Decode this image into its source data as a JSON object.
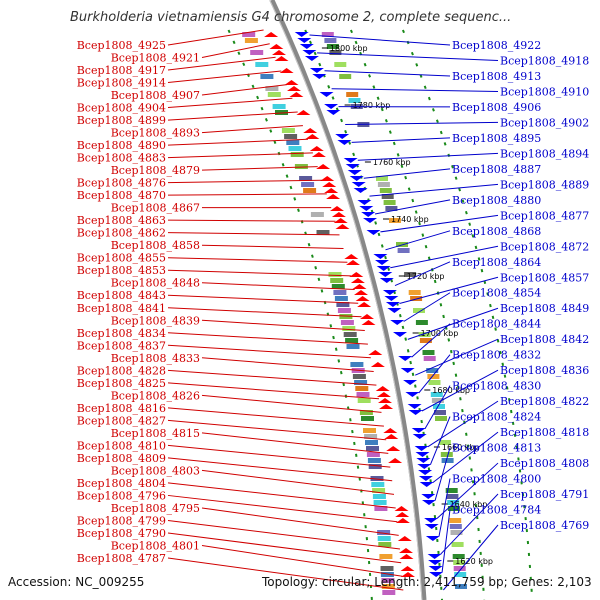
{
  "title": "Burkholderia vietnamiensis G4 chromosome 2, complete sequenc...",
  "footer": {
    "accession": "Accession: NC_009255",
    "summary": "Topology: circular; Length: 2,411,759 bp; Genes: 2,103"
  },
  "colors": {
    "left_labels": "#d00000",
    "right_labels": "#0000cc",
    "forward_genes": "#ff0000",
    "reverse_genes": "#0000ff",
    "backbone": "#888888",
    "track_border": "#1a8a1a"
  },
  "kbp_ticks": [
    "1800 kbp",
    "1780 kbp",
    "1760 kbp",
    "1740 kbp",
    "1720 kbp",
    "1700 kbp",
    "1680 kbp",
    "1660 kbp",
    "1640 kbp",
    "1620 kbp"
  ],
  "left_labels": [
    "Bcep1808_4925",
    "Bcep1808_4921",
    "Bcep1808_4917",
    "Bcep1808_4914",
    "Bcep1808_4907",
    "Bcep1808_4904",
    "Bcep1808_4899",
    "Bcep1808_4893",
    "Bcep1808_4890",
    "Bcep1808_4883",
    "Bcep1808_4879",
    "Bcep1808_4876",
    "Bcep1808_4870",
    "Bcep1808_4867",
    "Bcep1808_4863",
    "Bcep1808_4862",
    "Bcep1808_4858",
    "Bcep1808_4855",
    "Bcep1808_4853",
    "Bcep1808_4848",
    "Bcep1808_4843",
    "Bcep1808_4841",
    "Bcep1808_4839",
    "Bcep1808_4834",
    "Bcep1808_4837",
    "Bcep1808_4833",
    "Bcep1808_4828",
    "Bcep1808_4825",
    "Bcep1808_4826",
    "Bcep1808_4816",
    "Bcep1808_4827",
    "Bcep1808_4815",
    "Bcep1808_4810",
    "Bcep1808_4809",
    "Bcep1808_4803",
    "Bcep1808_4804",
    "Bcep1808_4796",
    "Bcep1808_4795",
    "Bcep1808_4799",
    "Bcep1808_4790",
    "Bcep1808_4801",
    "Bcep1808_4787"
  ],
  "right_labels": [
    "Bcep1808_4922",
    "Bcep1808_4918",
    "Bcep1808_4913",
    "Bcep1808_4910",
    "Bcep1808_4906",
    "Bcep1808_4902",
    "Bcep1808_4895",
    "Bcep1808_4894",
    "Bcep1808_4887",
    "Bcep1808_4889",
    "Bcep1808_4880",
    "Bcep1808_4877",
    "Bcep1808_4868",
    "Bcep1808_4872",
    "Bcep1808_4864",
    "Bcep1808_4857",
    "Bcep1808_4854",
    "Bcep1808_4849",
    "Bcep1808_4844",
    "Bcep1808_4842",
    "Bcep1808_4832",
    "Bcep1808_4836",
    "Bcep1808_4830",
    "Bcep1808_4822",
    "Bcep1808_4824",
    "Bcep1808_4818",
    "Bcep1808_4813",
    "Bcep1808_4808",
    "Bcep1808_4800",
    "Bcep1808_4791",
    "Bcep1808_4784",
    "Bcep1808_4769"
  ]
}
